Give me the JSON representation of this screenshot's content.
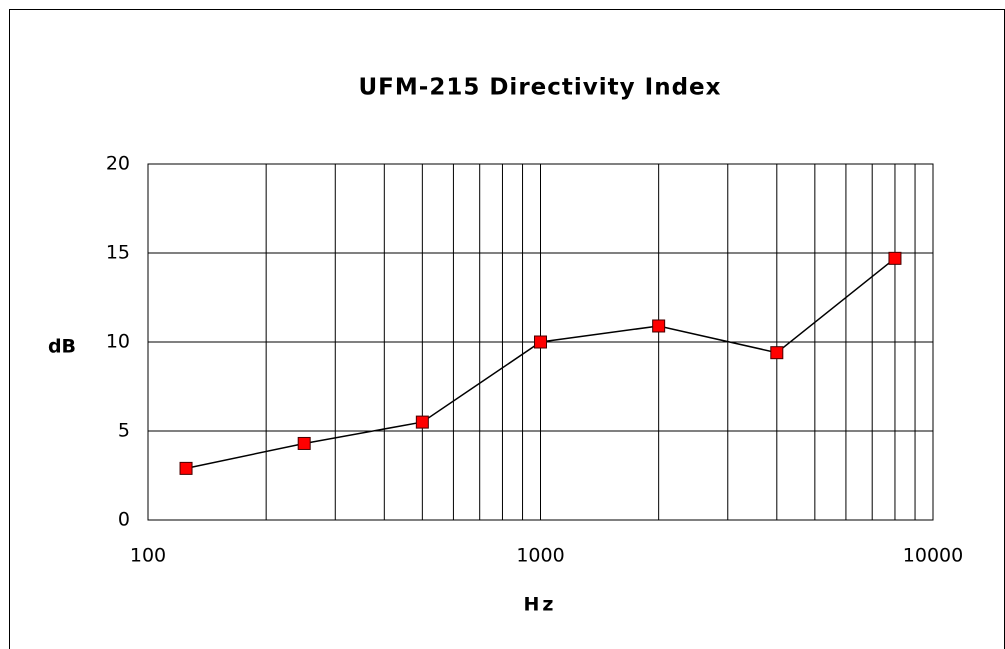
{
  "chart_data": {
    "type": "line",
    "title": "UFM-215 Directivity Index",
    "xlabel": "Hz",
    "ylabel": "dB",
    "x": [
      125,
      250,
      500,
      1000,
      2000,
      4000,
      8000
    ],
    "series": [
      {
        "name": "Directivity Index",
        "color": "#ff0000",
        "values": [
          2.9,
          4.3,
          5.5,
          10,
          10.9,
          9.4,
          14.7
        ]
      }
    ],
    "xscale": "log",
    "xlim": [
      100,
      10000
    ],
    "xticks": [
      100,
      1000,
      10000
    ],
    "xminorticks": [
      200,
      300,
      400,
      500,
      600,
      700,
      800,
      900,
      2000,
      3000,
      4000,
      5000,
      6000,
      7000,
      8000,
      9000
    ],
    "ylim": [
      0,
      20
    ],
    "yticks": [
      0,
      5,
      10,
      15,
      20
    ],
    "grid": true
  }
}
